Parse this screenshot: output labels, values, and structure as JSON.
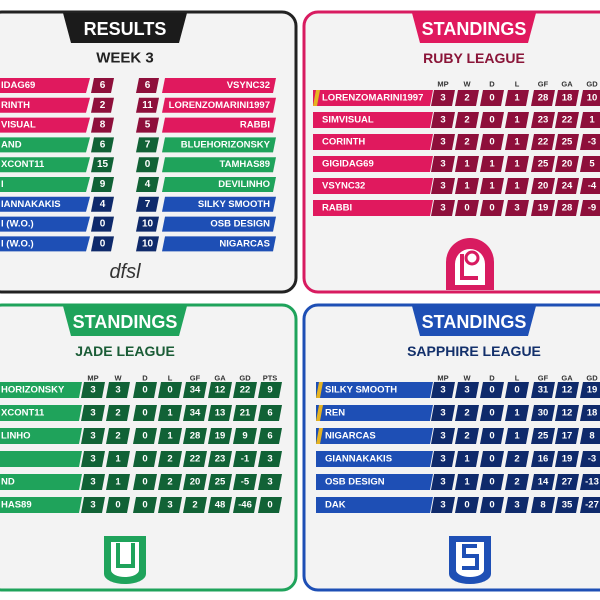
{
  "results": {
    "tab": "RESULTS",
    "subtitle": "WEEK 3",
    "logo": "dfsl",
    "matches": [
      {
        "home": "IDAG69",
        "home_score": 6,
        "away_score": 6,
        "away": "VSYNC32"
      },
      {
        "home": "RINTH",
        "home_score": 2,
        "away_score": 11,
        "away": "LORENZOMARINI1997"
      },
      {
        "home": "VISUAL",
        "home_score": 8,
        "away_score": 5,
        "away": "RABBI"
      },
      {
        "home": "AND",
        "home_score": 6,
        "away_score": 7,
        "away": "BLUEHORIZONSKY"
      },
      {
        "home": "XCONT11",
        "home_score": 15,
        "away_score": 0,
        "away": "TAMHAS89"
      },
      {
        "home": "I",
        "home_score": 9,
        "away_score": 4,
        "away": "DEVILINHO"
      },
      {
        "home": "IANNAKAKIS",
        "home_score": 4,
        "away_score": 7,
        "away": "SILKY SMOOTH"
      },
      {
        "home": "I (W.O.)",
        "home_score": 0,
        "away_score": 10,
        "away": "OSB DESIGN"
      },
      {
        "home": "I (W.O.)",
        "home_score": 0,
        "away_score": 10,
        "away": "NIGARCAS"
      }
    ]
  },
  "ruby": {
    "tab": "STANDINGS",
    "subtitle": "RUBY LEAGUE",
    "columns": [
      "MP",
      "W",
      "D",
      "L",
      "GF",
      "GA",
      "GD"
    ],
    "rows": [
      {
        "team": "LORENZOMARINI1997",
        "stats": [
          3,
          2,
          0,
          1,
          28,
          18,
          10
        ]
      },
      {
        "team": "SIMVISUAL",
        "stats": [
          3,
          2,
          0,
          1,
          23,
          22,
          1
        ]
      },
      {
        "team": "CORINTH",
        "stats": [
          3,
          2,
          0,
          1,
          22,
          25,
          -3
        ]
      },
      {
        "team": "GIGIDAG69",
        "stats": [
          3,
          1,
          1,
          1,
          25,
          20,
          5
        ]
      },
      {
        "team": "VSYNC32",
        "stats": [
          3,
          1,
          1,
          1,
          20,
          24,
          -4
        ]
      },
      {
        "team": "RABBI",
        "stats": [
          3,
          0,
          0,
          3,
          19,
          28,
          -9
        ]
      }
    ]
  },
  "jade": {
    "tab": "STANDINGS",
    "subtitle": "JADE LEAGUE",
    "columns": [
      "MP",
      "W",
      "D",
      "L",
      "GF",
      "GA",
      "GD",
      "PTS"
    ],
    "rows": [
      {
        "team": "HORIZONSKY",
        "stats": [
          3,
          3,
          0,
          0,
          34,
          12,
          22,
          9
        ]
      },
      {
        "team": "XCONT11",
        "stats": [
          3,
          2,
          0,
          1,
          34,
          13,
          21,
          6
        ]
      },
      {
        "team": "LINHO",
        "stats": [
          3,
          2,
          0,
          1,
          28,
          19,
          9,
          6
        ]
      },
      {
        "team": null,
        "stats": [
          3,
          1,
          0,
          2,
          22,
          23,
          -1,
          3
        ]
      },
      {
        "team": "ND",
        "stats": [
          3,
          1,
          0,
          2,
          20,
          25,
          -5,
          3
        ]
      },
      {
        "team": "HAS89",
        "stats": [
          3,
          0,
          0,
          3,
          2,
          48,
          -46,
          0
        ]
      }
    ]
  },
  "sapphire": {
    "tab": "STANDINGS",
    "subtitle": "SAPPHIRE LEAGUE",
    "columns": [
      "MP",
      "W",
      "D",
      "L",
      "GF",
      "GA",
      "GD"
    ],
    "rows": [
      {
        "team": "SILKY SMOOTH",
        "stats": [
          3,
          3,
          0,
          0,
          31,
          12,
          19
        ]
      },
      {
        "team": "REN",
        "stats": [
          3,
          2,
          0,
          1,
          30,
          12,
          18
        ]
      },
      {
        "team": "NIGARCAS",
        "stats": [
          3,
          2,
          0,
          1,
          25,
          17,
          8
        ]
      },
      {
        "team": "GIANNAKAKIS",
        "stats": [
          3,
          1,
          0,
          2,
          16,
          19,
          -3
        ]
      },
      {
        "team": "OSB DESIGN",
        "stats": [
          3,
          1,
          0,
          2,
          14,
          27,
          -13
        ]
      },
      {
        "team": "DAK",
        "stats": [
          3,
          0,
          0,
          3,
          8,
          35,
          -27
        ]
      }
    ]
  }
}
